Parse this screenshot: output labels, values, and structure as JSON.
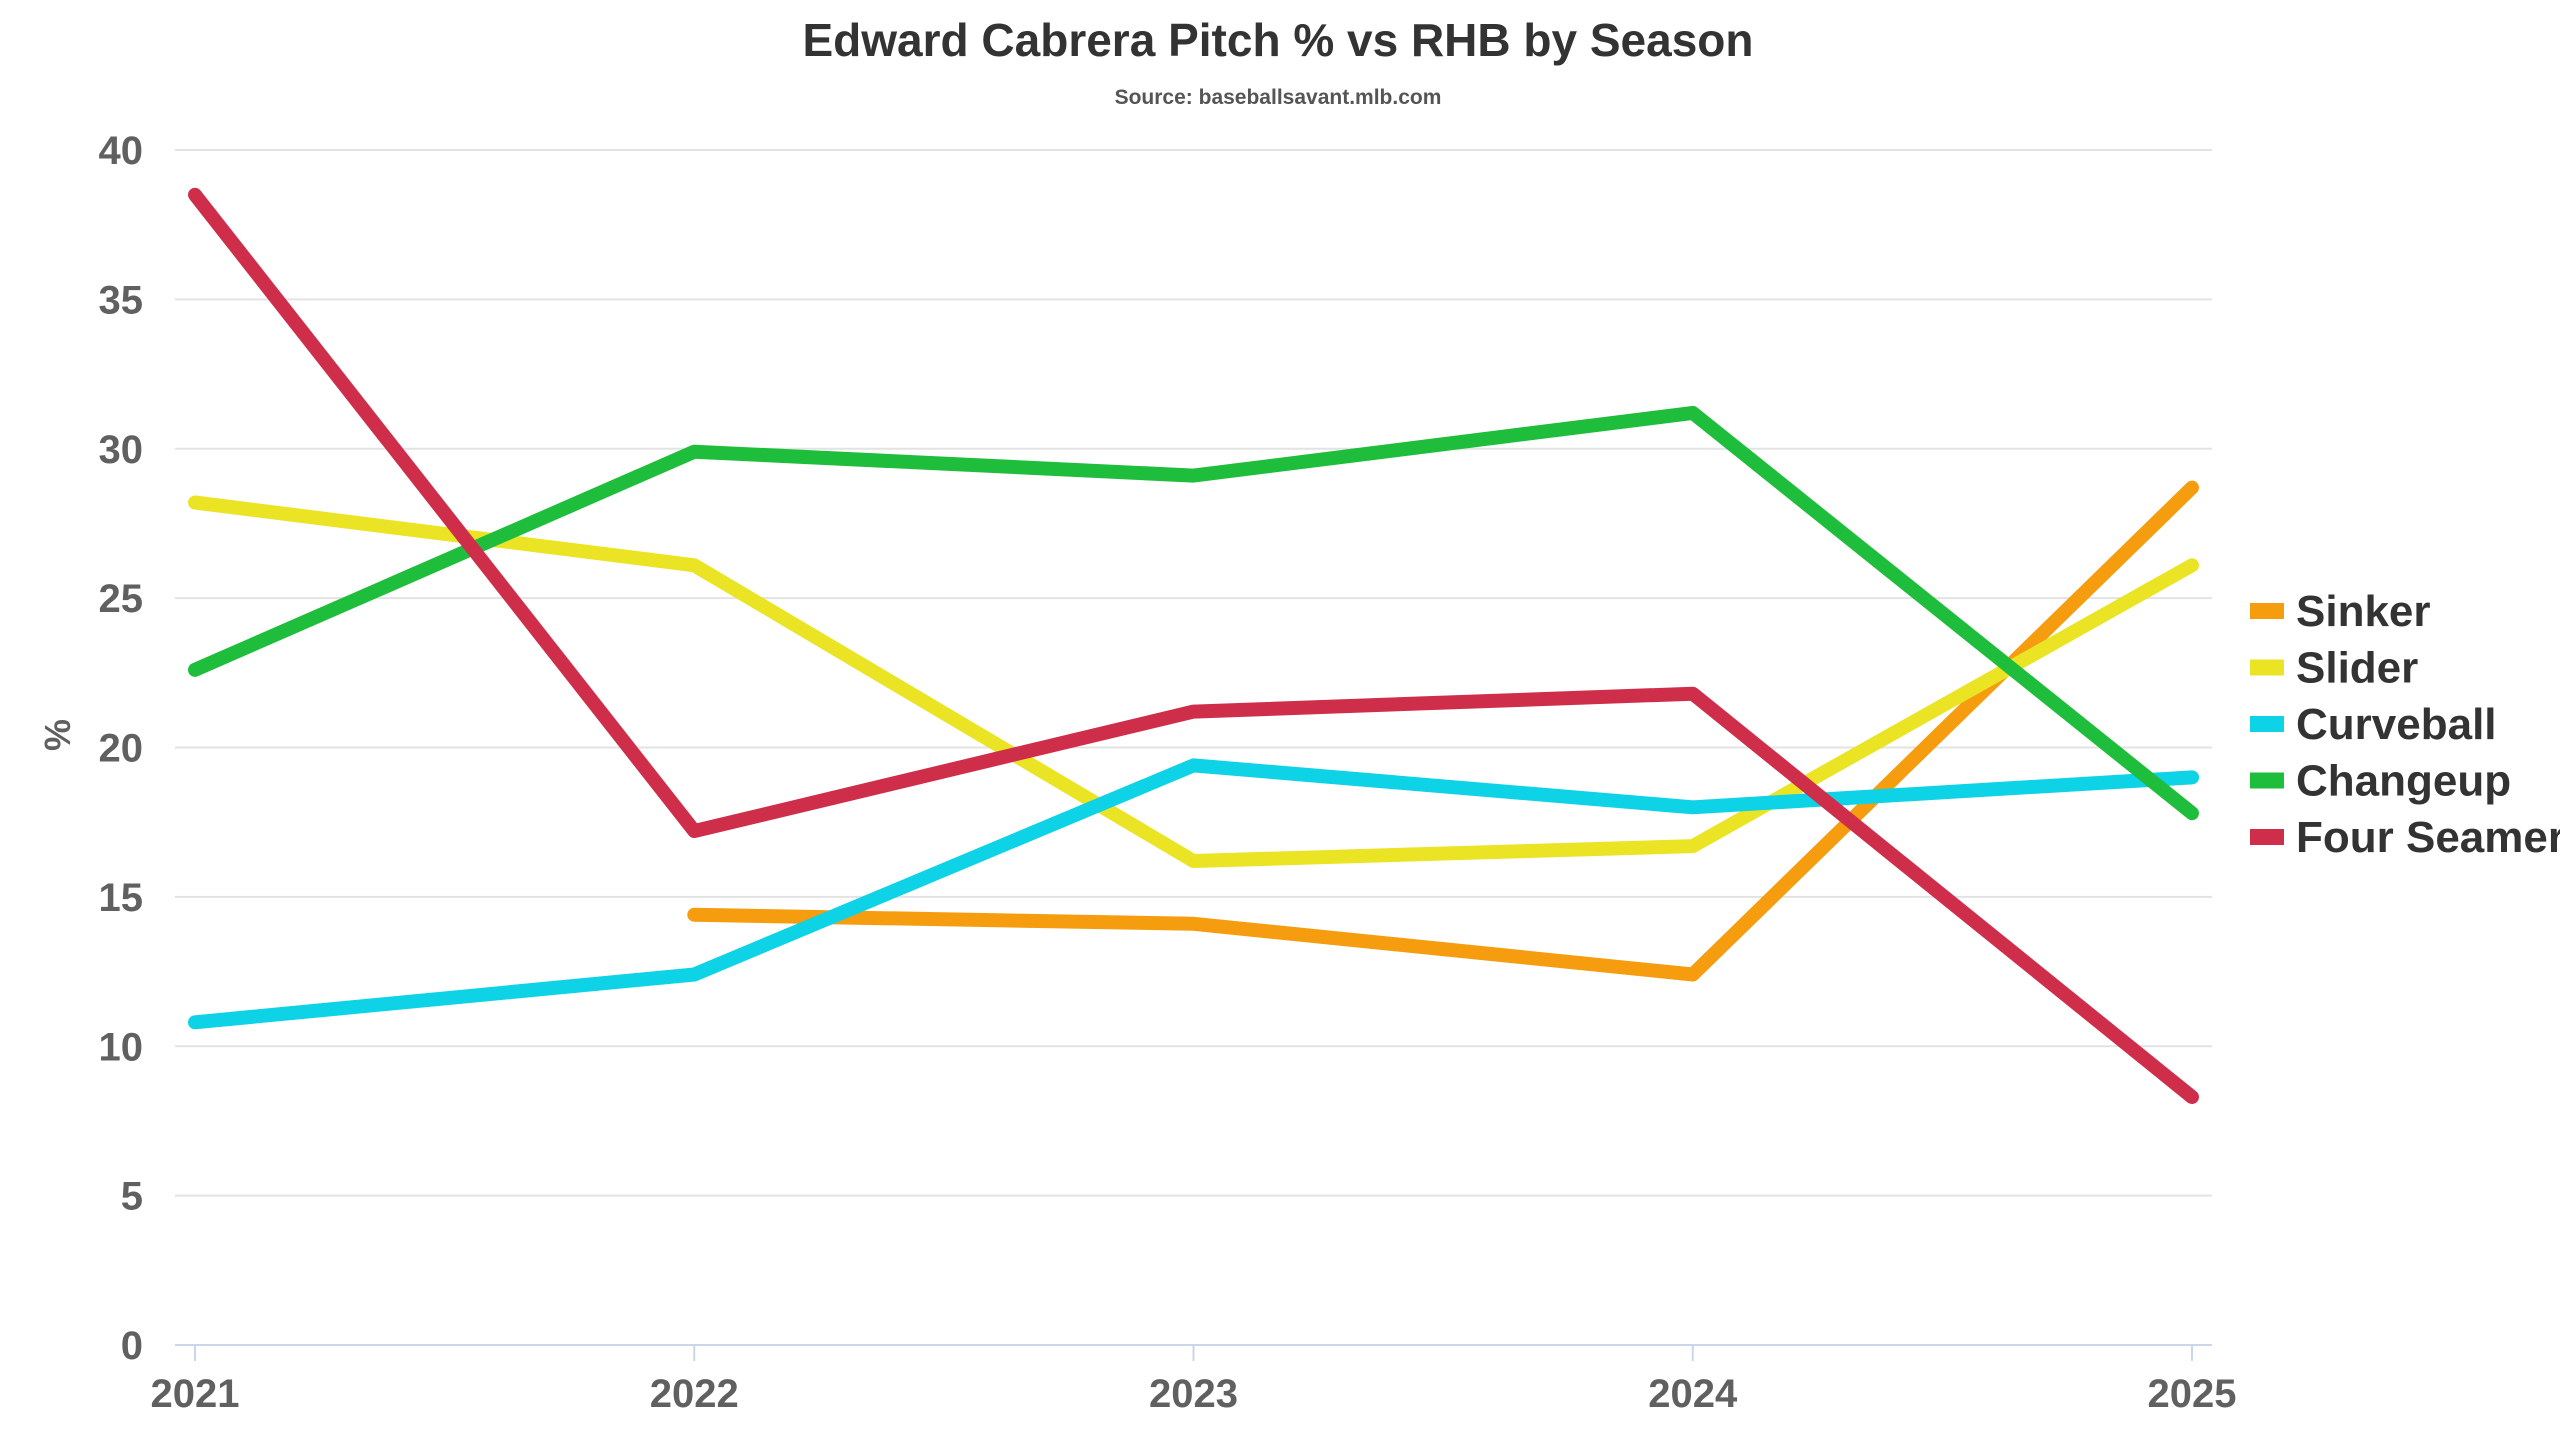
{
  "chart_data": {
    "type": "line",
    "title": "Edward Cabrera Pitch % vs RHB by Season",
    "subtitle": "Source: baseballsavant.mlb.com",
    "xlabel": "",
    "ylabel": "%",
    "categories": [
      "2021",
      "2022",
      "2023",
      "2024",
      "2025"
    ],
    "ylim": [
      0,
      40
    ],
    "yticks": [
      0,
      5,
      10,
      15,
      20,
      25,
      30,
      35,
      40
    ],
    "grid": true,
    "legend_position": "right",
    "series": [
      {
        "name": "Sinker",
        "color": "#f59c0f",
        "values": [
          null,
          14.4,
          14.1,
          12.4,
          28.7
        ]
      },
      {
        "name": "Slider",
        "color": "#eae424",
        "values": [
          28.2,
          26.1,
          16.2,
          16.7,
          26.1
        ]
      },
      {
        "name": "Curveball",
        "color": "#0ed2e6",
        "values": [
          10.8,
          12.4,
          19.4,
          18.0,
          19.0
        ]
      },
      {
        "name": "Changeup",
        "color": "#1fbd3c",
        "values": [
          22.6,
          29.9,
          29.1,
          31.2,
          17.8
        ]
      },
      {
        "name": "Four Seamer",
        "color": "#cf2e4b",
        "values": [
          38.5,
          17.2,
          21.2,
          21.8,
          8.3
        ]
      }
    ]
  }
}
